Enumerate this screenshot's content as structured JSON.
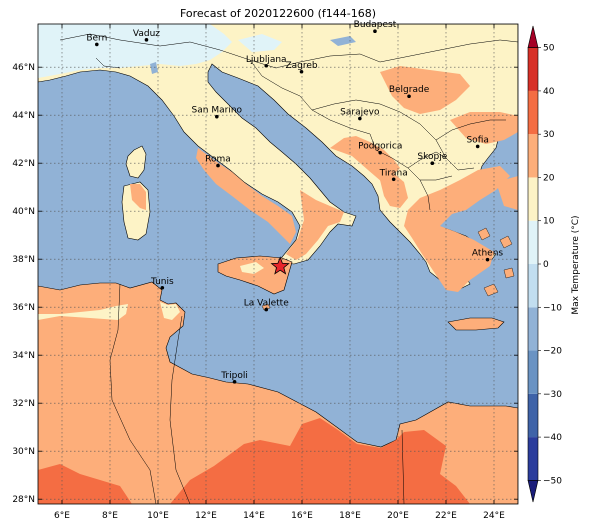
{
  "title": "Forecast of 2020122600 (f144-168)",
  "map": {
    "lon_range": [
      5,
      25
    ],
    "lat_range": [
      27.8,
      47.8
    ],
    "lon_ticks": [
      6,
      8,
      10,
      12,
      14,
      16,
      18,
      20,
      22,
      24
    ],
    "lat_ticks": [
      28,
      30,
      32,
      34,
      36,
      38,
      40,
      42,
      44,
      46
    ],
    "lon_tick_labels": [
      "6°E",
      "8°E",
      "10°E",
      "12°E",
      "14°E",
      "16°E",
      "18°E",
      "20°E",
      "22°E",
      "24°E"
    ],
    "lat_tick_labels": [
      "28°N",
      "30°N",
      "32°N",
      "34°N",
      "36°N",
      "38°N",
      "40°N",
      "42°N",
      "44°N",
      "46°N"
    ],
    "colors": {
      "sea": "#91b2d6",
      "cold": "#e0f3f8",
      "mild": "#fdf3c6",
      "warm": "#fdae7a",
      "hot": "#f46d43",
      "border": "#000000",
      "grid": "#555555",
      "marker": "#e8262b"
    },
    "cities": [
      {
        "name": "Bern",
        "lon": 7.45,
        "lat": 46.95
      },
      {
        "name": "Vaduz",
        "lon": 9.52,
        "lat": 47.14
      },
      {
        "name": "Budapest",
        "lon": 19.04,
        "lat": 47.5
      },
      {
        "name": "Ljubljana",
        "lon": 14.51,
        "lat": 46.06
      },
      {
        "name": "Zagreb",
        "lon": 15.98,
        "lat": 45.81
      },
      {
        "name": "San Marino",
        "lon": 12.45,
        "lat": 43.94
      },
      {
        "name": "Belgrade",
        "lon": 20.46,
        "lat": 44.79
      },
      {
        "name": "Sarajevo",
        "lon": 18.41,
        "lat": 43.86
      },
      {
        "name": "Sofia",
        "lon": 23.32,
        "lat": 42.7
      },
      {
        "name": "Roma",
        "lon": 12.5,
        "lat": 41.9
      },
      {
        "name": "Podgorica",
        "lon": 19.26,
        "lat": 42.44
      },
      {
        "name": "Skopje",
        "lon": 21.43,
        "lat": 42.0
      },
      {
        "name": "Tirana",
        "lon": 19.82,
        "lat": 41.33
      },
      {
        "name": "Athens",
        "lon": 23.73,
        "lat": 37.98
      },
      {
        "name": "Tunis",
        "lon": 10.18,
        "lat": 36.81
      },
      {
        "name": "La Valette",
        "lon": 14.51,
        "lat": 35.9
      },
      {
        "name": "Tripoli",
        "lon": 13.19,
        "lat": 32.89
      }
    ],
    "marker": {
      "lon": 15.09,
      "lat": 37.7
    }
  },
  "colorbar": {
    "label": "Max Temperature (°C)",
    "min": -55,
    "max": 55,
    "ticks": [
      -50,
      -40,
      -30,
      -20,
      -10,
      0,
      10,
      20,
      30,
      40,
      50
    ],
    "tick_labels": [
      "−50",
      "−40",
      "−30",
      "−20",
      "−10",
      "0",
      "10",
      "20",
      "30",
      "40",
      "50"
    ],
    "bands": [
      {
        "from": -55,
        "to": -50,
        "color": "#1a1d7a"
      },
      {
        "from": -50,
        "to": -40,
        "color": "#2b3c9c"
      },
      {
        "from": -40,
        "to": -30,
        "color": "#3f63a8"
      },
      {
        "from": -30,
        "to": -20,
        "color": "#6a93c3"
      },
      {
        "from": -20,
        "to": -10,
        "color": "#91b2d6"
      },
      {
        "from": -10,
        "to": 0,
        "color": "#c2def0"
      },
      {
        "from": 0,
        "to": 10,
        "color": "#e0f3f8"
      },
      {
        "from": 10,
        "to": 20,
        "color": "#fdf3c6"
      },
      {
        "from": 20,
        "to": 30,
        "color": "#fdae7a"
      },
      {
        "from": 30,
        "to": 40,
        "color": "#f46d43"
      },
      {
        "from": 40,
        "to": 50,
        "color": "#d73027"
      },
      {
        "from": 50,
        "to": 55,
        "color": "#a50026"
      }
    ]
  }
}
